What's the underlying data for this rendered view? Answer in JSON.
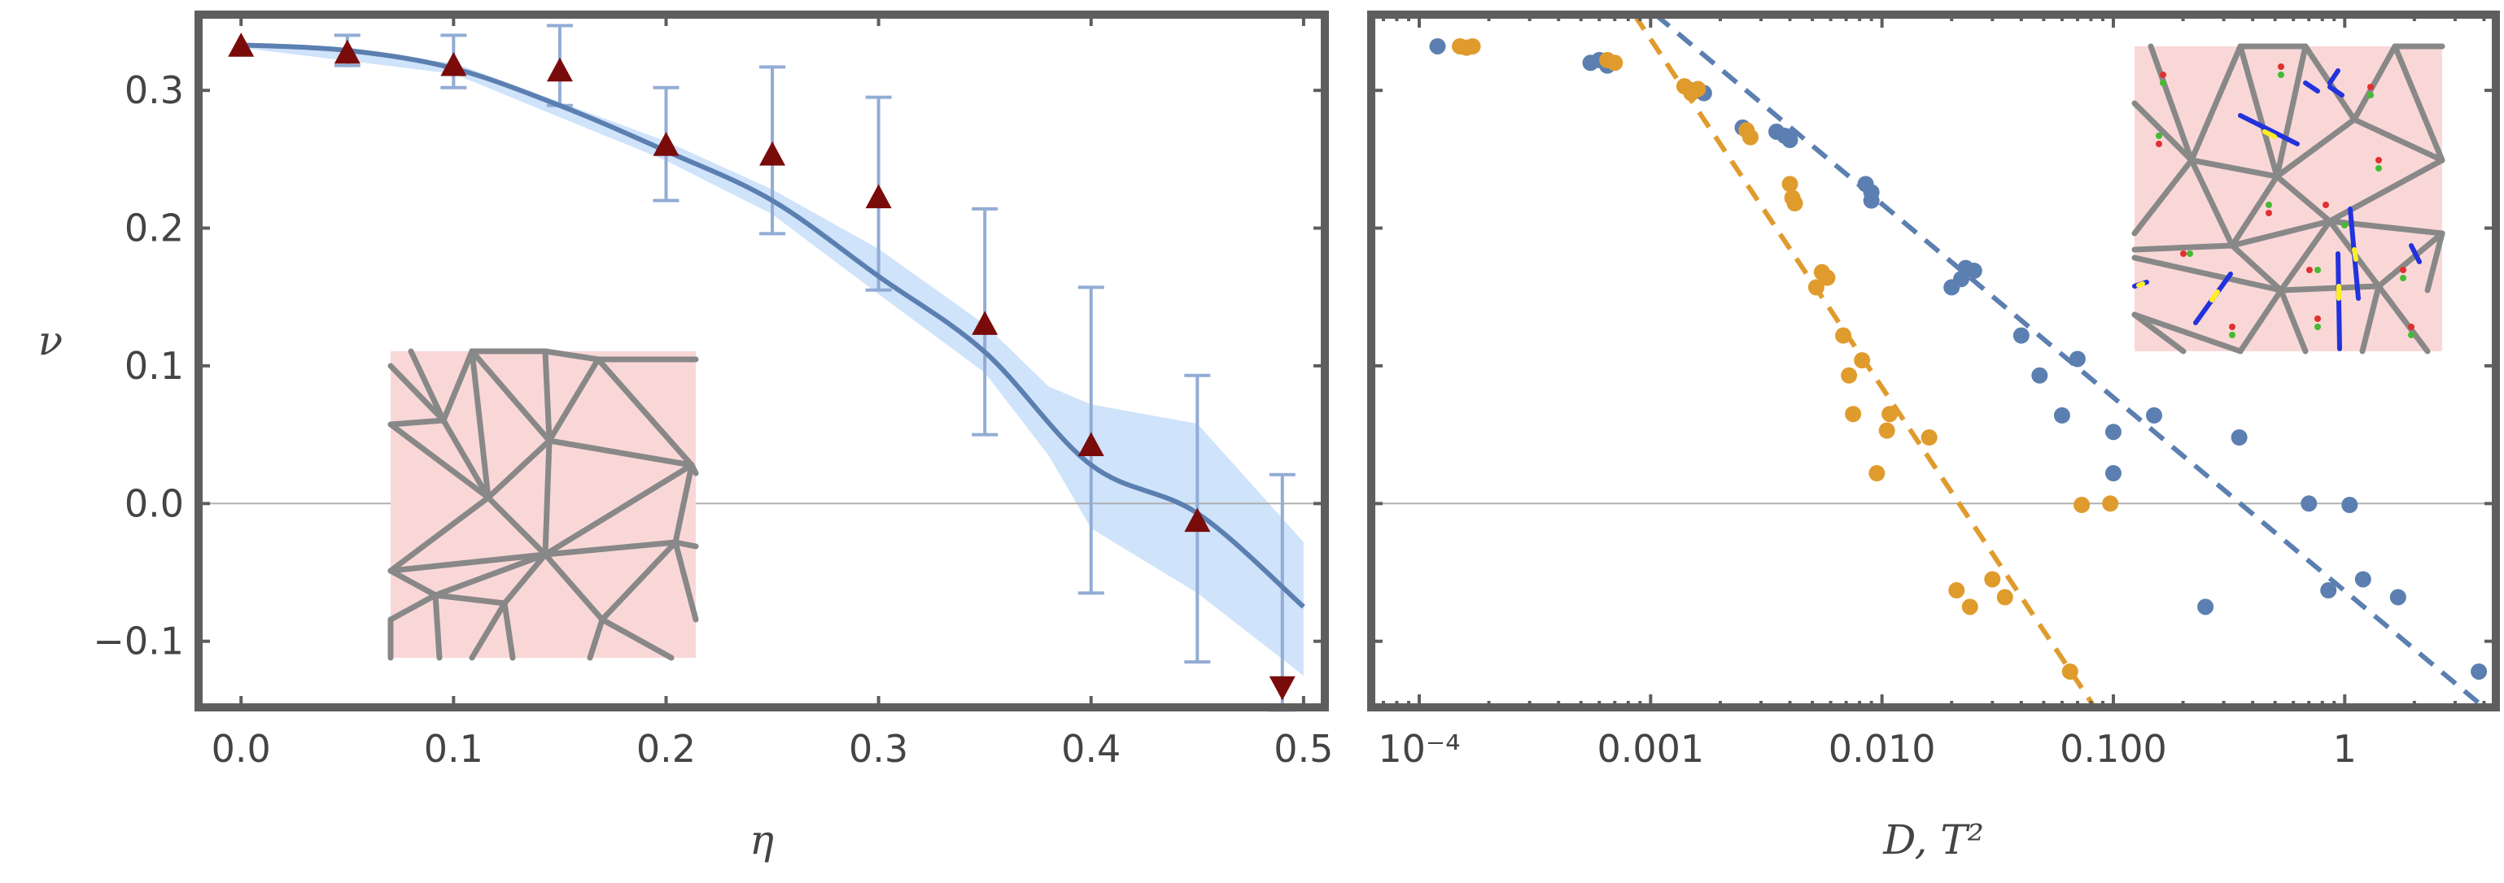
{
  "chart_data": [
    {
      "type": "line",
      "xlabel": "η",
      "ylabel": "ν",
      "xlim": [
        -0.02,
        0.51
      ],
      "ylim": [
        -0.148,
        0.355
      ],
      "x_ticks": [
        {
          "v": 0.0,
          "label": "0.0"
        },
        {
          "v": 0.1,
          "label": "0.1"
        },
        {
          "v": 0.2,
          "label": "0.2"
        },
        {
          "v": 0.3,
          "label": "0.3"
        },
        {
          "v": 0.4,
          "label": "0.4"
        },
        {
          "v": 0.5,
          "label": "0.5"
        }
      ],
      "y_ticks": [
        {
          "v": -0.1,
          "label": "−0.1"
        },
        {
          "v": 0.0,
          "label": "0.0"
        },
        {
          "v": 0.1,
          "label": "0.1"
        },
        {
          "v": 0.2,
          "label": "0.2"
        },
        {
          "v": 0.3,
          "label": "0.3"
        }
      ],
      "grid": false,
      "colors": {
        "fit": "#5b7fb0",
        "band": "#cfe3fb",
        "markers": "#7a0b0b",
        "errorbars": "#92acd4"
      },
      "fit_curve": {
        "x": [
          0.0,
          0.05,
          0.1,
          0.15,
          0.2,
          0.25,
          0.3,
          0.35,
          0.4,
          0.45,
          0.5
        ],
        "y": [
          0.333,
          0.329,
          0.316,
          0.289,
          0.256,
          0.22,
          0.165,
          0.11,
          0.028,
          -0.007,
          -0.075
        ]
      },
      "band": {
        "x": [
          0.0,
          0.1,
          0.2,
          0.25,
          0.3,
          0.35,
          0.38,
          0.4,
          0.45,
          0.5
        ],
        "upper": [
          0.335,
          0.32,
          0.263,
          0.228,
          0.185,
          0.13,
          0.085,
          0.072,
          0.058,
          -0.028
        ],
        "lower": [
          0.331,
          0.312,
          0.249,
          0.21,
          0.152,
          0.095,
          0.035,
          -0.018,
          -0.065,
          -0.125
        ]
      },
      "markers": {
        "x": [
          0.0,
          0.05,
          0.1,
          0.15,
          0.2,
          0.25,
          0.3,
          0.35,
          0.4,
          0.45,
          0.49
        ],
        "y": [
          0.332,
          0.327,
          0.318,
          0.314,
          0.26,
          0.253,
          0.222,
          0.13,
          0.042,
          -0.013,
          -0.133
        ],
        "direction": [
          "up",
          "up",
          "up",
          "up",
          "up",
          "up",
          "up",
          "up",
          "up",
          "up",
          "down"
        ]
      },
      "errorbars": {
        "x": [
          0.05,
          0.1,
          0.15,
          0.2,
          0.25,
          0.3,
          0.35,
          0.4,
          0.45,
          0.49
        ],
        "low": [
          0.318,
          0.302,
          0.289,
          0.22,
          0.196,
          0.155,
          0.05,
          -0.065,
          -0.115,
          -0.15
        ],
        "high": [
          0.34,
          0.34,
          0.347,
          0.302,
          0.317,
          0.295,
          0.214,
          0.157,
          0.093,
          0.021
        ]
      }
    },
    {
      "type": "scatter",
      "xlabel": "D, T²",
      "xscale": "log",
      "xlim": [
        6.2e-05,
        4.5
      ],
      "ylim": [
        -0.148,
        0.355
      ],
      "x_ticks": [
        {
          "v": 0.0001,
          "label": "10⁻⁴"
        },
        {
          "v": 0.001,
          "label": "0.001"
        },
        {
          "v": 0.01,
          "label": "0.010"
        },
        {
          "v": 0.1,
          "label": "0.100"
        },
        {
          "v": 1,
          "label": "1"
        }
      ],
      "grid": false,
      "series": [
        {
          "color": "#5b7fb0",
          "x": [
            0.00012,
            0.00055,
            0.0006,
            0.00065,
            0.0015,
            0.0017,
            0.0025,
            0.0035,
            0.0038,
            0.004,
            0.0085,
            0.009,
            0.009,
            0.02,
            0.022,
            0.023,
            0.025,
            0.04,
            0.048,
            0.06,
            0.07,
            0.1,
            0.1,
            0.15,
            0.35,
            0.7,
            0.85,
            1.05,
            1.2,
            1.7,
            0.25,
            3.8
          ],
          "y": [
            0.332,
            0.32,
            0.322,
            0.318,
            0.3,
            0.298,
            0.273,
            0.27,
            0.267,
            0.264,
            0.232,
            0.226,
            0.22,
            0.157,
            0.163,
            0.171,
            0.169,
            0.122,
            0.093,
            0.064,
            0.105,
            0.052,
            0.022,
            0.064,
            0.048,
            0.0,
            -0.063,
            -0.001,
            -0.055,
            -0.068,
            -0.075,
            -0.122
          ]
        },
        {
          "color": "#e09b2d",
          "x": [
            0.00015,
            0.00016,
            0.00017,
            0.00065,
            0.0007,
            0.0014,
            0.0015,
            0.0016,
            0.0026,
            0.0027,
            0.004,
            0.0041,
            0.0042,
            0.0052,
            0.0055,
            0.0058,
            0.0068,
            0.0072,
            0.0075,
            0.0082,
            0.0105,
            0.0108,
            0.0095,
            0.016,
            0.021,
            0.024,
            0.03,
            0.034,
            0.073,
            0.097,
            0.065
          ],
          "y": [
            0.332,
            0.331,
            0.332,
            0.322,
            0.32,
            0.303,
            0.298,
            0.301,
            0.271,
            0.266,
            0.232,
            0.222,
            0.218,
            0.157,
            0.168,
            0.164,
            0.122,
            0.093,
            0.065,
            0.104,
            0.053,
            0.065,
            0.022,
            0.048,
            -0.063,
            -0.075,
            -0.055,
            -0.068,
            -0.001,
            0.0,
            -0.122
          ]
        }
      ],
      "fit_lines": [
        {
          "color": "#5b7fb0",
          "x": [
            0.00105,
            4.0
          ],
          "y": [
            0.355,
            -0.148
          ]
        },
        {
          "color": "#e09b2d",
          "x": [
            0.00085,
            0.083
          ],
          "y": [
            0.355,
            -0.148
          ]
        }
      ]
    }
  ]
}
